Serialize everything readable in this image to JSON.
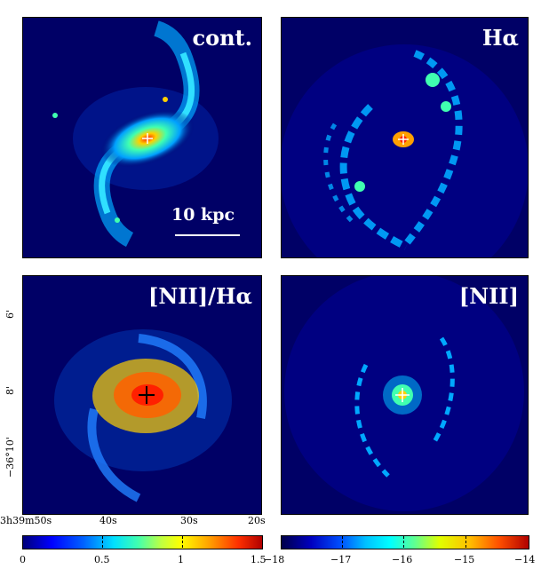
{
  "panels": [
    {
      "id": "continuum",
      "label": "cont."
    },
    {
      "id": "halpha",
      "label": "Hα"
    },
    {
      "id": "nii-ratio",
      "label": "[NII]/Hα"
    },
    {
      "id": "nii",
      "label": "[NII]"
    }
  ],
  "scalebar": {
    "label": "10 kpc"
  },
  "axes": {
    "ra_ticks": [
      "3h39m50s",
      "40s",
      "30s",
      "20s"
    ],
    "dec_ticks": [
      "6'",
      "8'",
      "−36°10'"
    ]
  },
  "colorbars": {
    "ratio": {
      "min": 0,
      "max": 1.5,
      "ticks": [
        "0",
        "0.5",
        "1",
        "1.5"
      ]
    },
    "flux": {
      "min": -18,
      "max": -14,
      "ticks": [
        "−18",
        "−17",
        "−16",
        "−15",
        "−14"
      ]
    }
  },
  "colors": {
    "background": "#000066",
    "galaxy_core": "#ff2a00",
    "cross": "#ffffff"
  }
}
